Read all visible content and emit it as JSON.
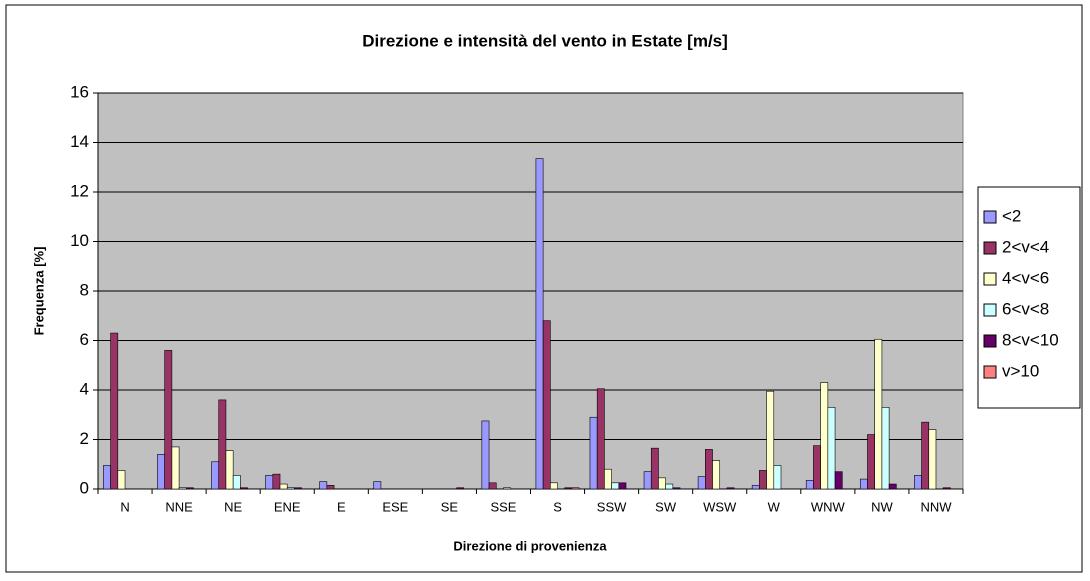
{
  "chart_data": {
    "type": "bar",
    "title": "Direzione e intensità del vento in Estate [m/s]",
    "x_label": "Direzione di provenienza",
    "y_label": "Frequenza [%]",
    "categories": [
      "N",
      "NNE",
      "NE",
      "ENE",
      "E",
      "ESE",
      "SE",
      "SSE",
      "S",
      "SSW",
      "SW",
      "WSW",
      "W",
      "WNW",
      "NW",
      "NNW"
    ],
    "series": [
      {
        "name": "<2",
        "color": "#9999ff",
        "values": [
          0.95,
          1.4,
          1.1,
          0.55,
          0.3,
          0.3,
          0,
          2.75,
          13.35,
          2.9,
          0.7,
          0.5,
          0.15,
          0.35,
          0.4,
          0.55
        ]
      },
      {
        "name": "2<v<4",
        "color": "#993366",
        "values": [
          6.3,
          5.6,
          3.6,
          0.6,
          0.15,
          0,
          0,
          0.25,
          6.8,
          4.05,
          1.65,
          1.6,
          0.75,
          1.75,
          2.2,
          2.7
        ]
      },
      {
        "name": "4<v<6",
        "color": "#ffffcc",
        "values": [
          0.75,
          1.7,
          1.55,
          0.2,
          0,
          0,
          0,
          0,
          0.25,
          0.8,
          0.45,
          1.15,
          3.95,
          4.3,
          6.05,
          2.4
        ]
      },
      {
        "name": "6<v<8",
        "color": "#ccffff",
        "values": [
          0,
          0.05,
          0.55,
          0.05,
          0,
          0,
          0,
          0.05,
          0,
          0.25,
          0.2,
          0,
          0.95,
          3.3,
          3.3,
          0
        ]
      },
      {
        "name": "8<v<10",
        "color": "#660066",
        "values": [
          0,
          0.05,
          0.05,
          0.05,
          0,
          0,
          0.05,
          0,
          0.05,
          0.25,
          0.05,
          0.05,
          0,
          0.7,
          0.2,
          0.05
        ]
      },
      {
        "name": "v>10",
        "color": "#ff8080",
        "values": [
          0,
          0,
          0,
          0,
          0,
          0,
          0,
          0,
          0.05,
          0,
          0,
          0,
          0,
          0,
          0,
          0
        ]
      }
    ],
    "ylim": [
      0,
      16
    ],
    "yticks": [
      0,
      2,
      4,
      6,
      8,
      10,
      12,
      14,
      16
    ],
    "grid": true,
    "legend": "right"
  }
}
